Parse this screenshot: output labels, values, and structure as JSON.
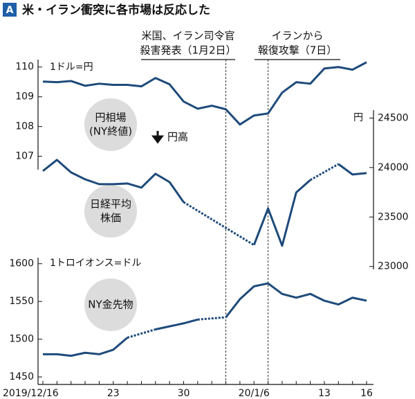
{
  "badge": "A",
  "title": "米・イラン衝突に各市場は反応した",
  "annotations": [
    {
      "lines": [
        "米国、イラン司令官",
        "殺害発表（1月2日）"
      ],
      "index": 13
    },
    {
      "lines": [
        "イランから",
        "報復攻撃（7日）"
      ],
      "index": 16
    }
  ],
  "chart_data": [
    {
      "type": "line",
      "axis": "left",
      "unit_label": "1ドル=円",
      "note": "円高",
      "color": "#1d4a7a",
      "series": [
        {
          "name": [
            "円相場",
            "(NY終値)"
          ],
          "color": "#1d4a7a",
          "values": [
            109.51,
            109.49,
            109.53,
            109.37,
            109.44,
            109.4,
            109.4,
            109.35,
            109.63,
            109.42,
            108.84,
            108.6,
            108.7,
            108.58,
            108.07,
            108.37,
            108.44,
            109.14,
            109.49,
            109.44,
            109.95,
            110.0,
            109.91,
            110.16
          ]
        }
      ],
      "ylim": [
        106.55,
        110.25
      ],
      "yticks": [
        107,
        108,
        109,
        110
      ]
    },
    {
      "type": "line",
      "axis": "right",
      "unit_label": "円",
      "series": [
        {
          "name": [
            "日経平均",
            "株価"
          ],
          "color": "#1d4a7a",
          "values": [
            23965,
            24077,
            23951,
            23881,
            23832,
            23832,
            23839,
            23797,
            23937,
            23853,
            23650,
            null,
            null,
            null,
            null,
            23217,
            23587,
            23210,
            23748,
            23874,
            null,
            24035,
            23930,
            23944
          ]
        }
      ],
      "ylim": [
        22970,
        24580
      ],
      "yticks": [
        23000,
        23500,
        24000,
        24500
      ]
    },
    {
      "type": "line",
      "axis": "left",
      "unit_label": "1トロイオンス=ドル",
      "categories": [
        "2019/12/16",
        null,
        null,
        null,
        null,
        "23",
        null,
        null,
        null,
        null,
        "30",
        null,
        null,
        null,
        null,
        "20/1/6",
        null,
        null,
        null,
        null,
        "13",
        null,
        null,
        "16"
      ],
      "series": [
        {
          "name": [
            "NY金先物"
          ],
          "color": "#1d4a7a",
          "values": [
            1480,
            1480,
            1478,
            1482,
            1480,
            1486,
            1502,
            null,
            1513,
            1517,
            1521,
            1526,
            null,
            1529,
            1553,
            1570,
            1574,
            1560,
            1555,
            1560,
            1551,
            1546,
            1555,
            1551
          ]
        }
      ],
      "ylim": [
        1440,
        1608
      ],
      "yticks": [
        1450,
        1500,
        1550,
        1600
      ]
    }
  ]
}
